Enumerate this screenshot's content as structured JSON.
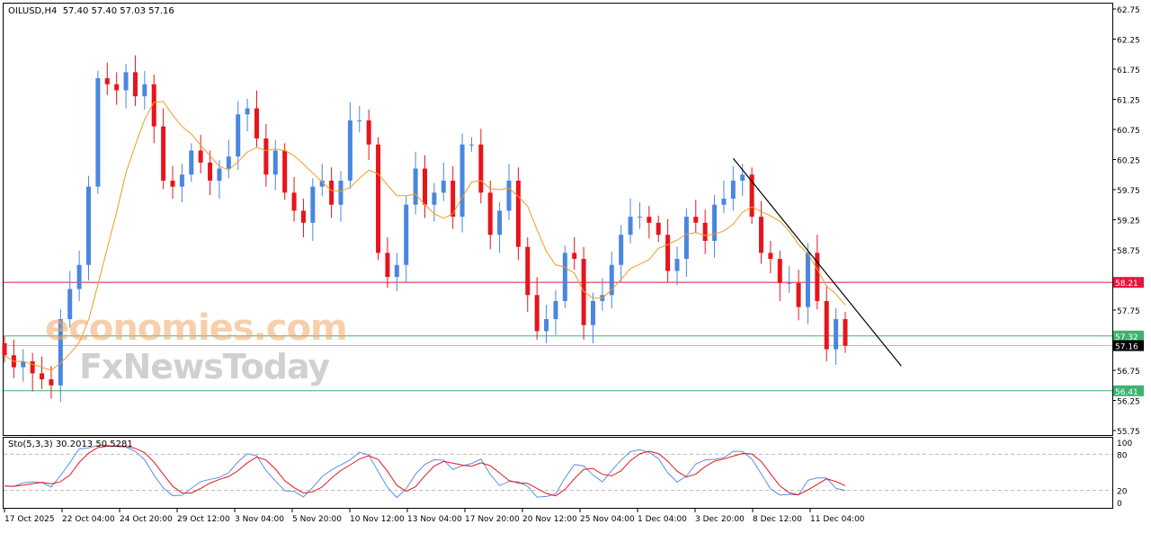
{
  "header": {
    "symbol": "OILUSD,H4",
    "ohlc": "57.40 57.40 57.03 57.16"
  },
  "watermark": {
    "line1": "economies.com",
    "line2": "FxNewsToday"
  },
  "colors": {
    "up": "#4a86e0",
    "down": "#e8141c",
    "ma": "#f39c1e",
    "stoch_main": "#5a8fe6",
    "stoch_signal": "#e8141c"
  },
  "stochastic": {
    "label": "Sto(5,3,3) 30.2013 50.5281",
    "levels": [
      "100",
      "80",
      "20",
      "0"
    ]
  },
  "chart_data": {
    "type": "candlestick",
    "title": "OILUSD,H4",
    "ylim": [
      55.75,
      62.75
    ],
    "yticks": [
      "62.75",
      "62.25",
      "61.75",
      "61.25",
      "60.75",
      "60.25",
      "59.75",
      "59.25",
      "58.75",
      "57.75",
      "56.75",
      "56.25",
      "55.75"
    ],
    "xticks": [
      "17 Oct 2025",
      "22 Oct 04:00",
      "24 Oct 20:00",
      "29 Oct 12:00",
      "3 Nov 04:00",
      "5 Nov 20:00",
      "10 Nov 12:00",
      "13 Nov 04:00",
      "17 Nov 20:00",
      "20 Nov 12:00",
      "25 Nov 04:00",
      "1 Dec 04:00",
      "3 Dec 20:00",
      "8 Dec 12:00",
      "11 Dec 04:00"
    ],
    "first_open": 57.2,
    "closes": [
      57.0,
      56.8,
      56.9,
      56.7,
      56.6,
      56.5,
      57.6,
      58.1,
      58.5,
      59.8,
      61.6,
      61.5,
      61.4,
      61.7,
      61.3,
      61.5,
      60.8,
      59.9,
      59.8,
      60.0,
      60.4,
      60.2,
      59.9,
      60.1,
      60.3,
      61.0,
      61.1,
      60.6,
      60.0,
      60.4,
      59.7,
      59.4,
      59.2,
      59.8,
      59.9,
      59.5,
      59.9,
      60.9,
      60.9,
      60.5,
      58.7,
      58.3,
      58.5,
      59.5,
      60.1,
      59.5,
      59.7,
      59.9,
      59.3,
      60.5,
      60.5,
      59.7,
      59.0,
      59.4,
      59.9,
      58.8,
      58.0,
      57.4,
      57.6,
      57.9,
      58.7,
      58.6,
      57.5,
      57.9,
      58.0,
      58.5,
      59.0,
      59.3,
      59.3,
      59.2,
      59.0,
      58.4,
      58.6,
      59.3,
      59.2,
      58.9,
      59.5,
      59.6,
      59.9,
      60.0,
      59.3,
      58.7,
      58.6,
      58.2,
      58.2,
      57.8,
      58.7,
      57.9,
      57.1,
      57.6,
      57.16
    ],
    "hlines": [
      {
        "price": "58.21",
        "color": "#e8143c"
      },
      {
        "price": "57.32",
        "color": "#3cb371"
      },
      {
        "price": "57.16",
        "color": "#000000",
        "line": "#bbbbbb"
      },
      {
        "price": "56.41",
        "color": "#3cb371"
      }
    ],
    "trendline": {
      "start": {
        "bar": 78,
        "price": 60.27
      },
      "end": {
        "bar": 96,
        "price": 56.82
      }
    }
  }
}
